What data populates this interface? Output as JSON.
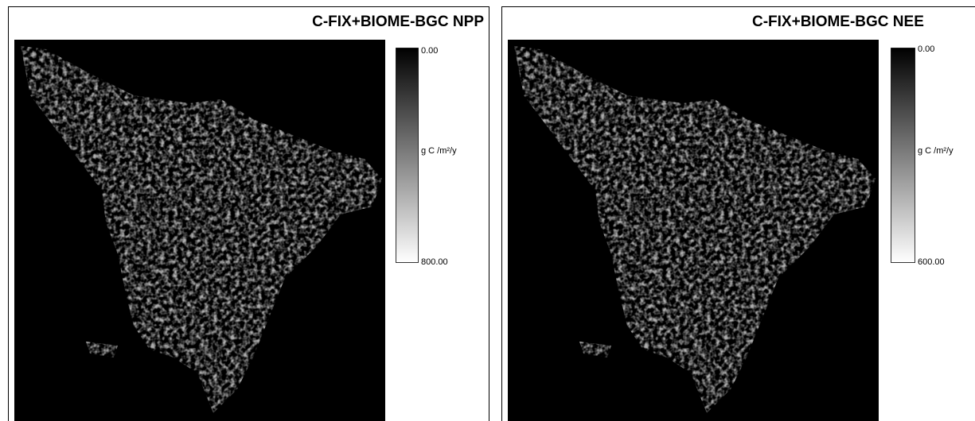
{
  "panels": [
    {
      "title": "C-FIX+BIOME-BGC NPP",
      "legend": {
        "min_label": "0.00",
        "max_label": "800.00",
        "unit": "g C /m²/y"
      }
    },
    {
      "title": "C-FIX+BIOME-BGC NEE",
      "legend": {
        "min_label": "0.00",
        "max_label": "600.00",
        "unit": "g C /m²/y"
      }
    }
  ]
}
